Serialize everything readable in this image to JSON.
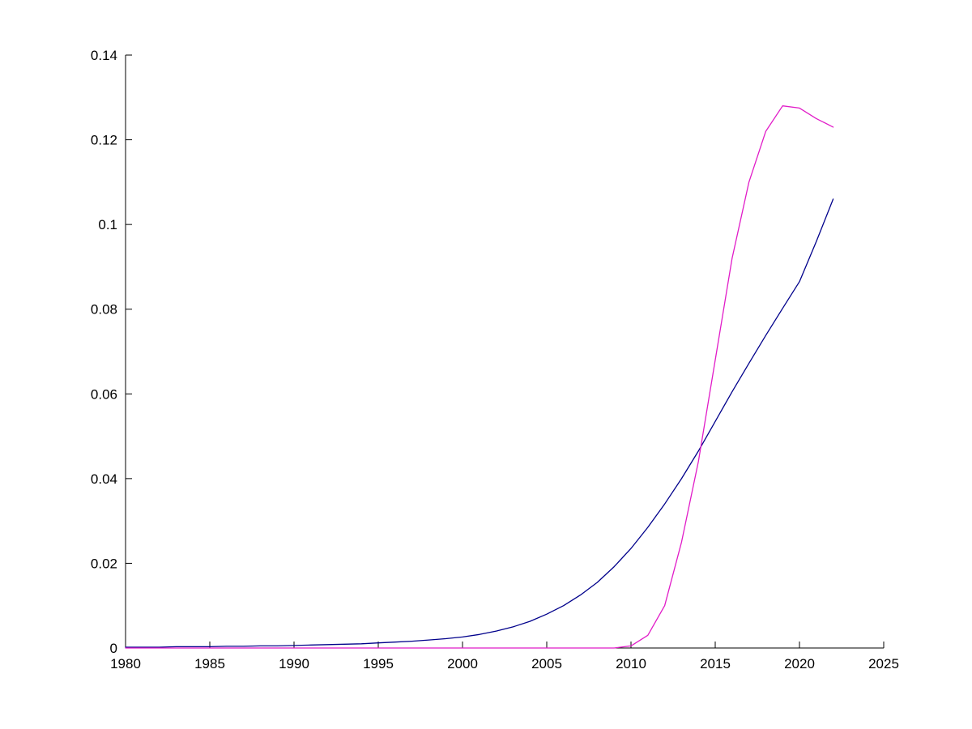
{
  "chart_data": {
    "type": "line",
    "title": "",
    "xlabel": "",
    "ylabel": "",
    "grid": false,
    "legend": "none",
    "axis_color": "#000000",
    "background_color": "#ffffff",
    "xlim": [
      1980,
      2025
    ],
    "ylim": [
      0,
      0.14
    ],
    "x_ticks": [
      1980,
      1985,
      1990,
      1995,
      2000,
      2005,
      2010,
      2015,
      2020,
      2025
    ],
    "x_tick_labels": [
      "1980",
      "1985",
      "1990",
      "1995",
      "2000",
      "2005",
      "2010",
      "2015",
      "2020",
      "2025"
    ],
    "y_ticks": [
      0,
      0.02,
      0.04,
      0.06,
      0.08,
      0.1,
      0.12,
      0.14
    ],
    "y_tick_labels": [
      "0",
      "0.02",
      "0.04",
      "0.06",
      "0.08",
      "0.1",
      "0.12",
      "0.14"
    ],
    "series": [
      {
        "name": "blue-line",
        "color": "#00008b",
        "x": [
          1980,
          1981,
          1982,
          1983,
          1984,
          1985,
          1986,
          1987,
          1988,
          1989,
          1990,
          1991,
          1992,
          1993,
          1994,
          1995,
          1996,
          1997,
          1998,
          1999,
          2000,
          2001,
          2002,
          2003,
          2004,
          2005,
          2006,
          2007,
          2008,
          2009,
          2010,
          2011,
          2012,
          2013,
          2014,
          2015,
          2016,
          2017,
          2018,
          2019,
          2020,
          2021,
          2022
        ],
        "y": [
          0.0002,
          0.0002,
          0.0002,
          0.0003,
          0.0003,
          0.0003,
          0.0004,
          0.0004,
          0.0005,
          0.0005,
          0.0006,
          0.0007,
          0.0008,
          0.0009,
          0.001,
          0.0012,
          0.0014,
          0.0016,
          0.0019,
          0.0022,
          0.0026,
          0.0032,
          0.004,
          0.005,
          0.0063,
          0.008,
          0.01,
          0.0125,
          0.0155,
          0.0192,
          0.0235,
          0.0285,
          0.034,
          0.04,
          0.0465,
          0.0535,
          0.0605,
          0.0672,
          0.0738,
          0.0802,
          0.0865,
          0.096,
          0.106
        ]
      },
      {
        "name": "magenta-line",
        "color": "#e11cc8",
        "x": [
          1980,
          1981,
          1982,
          1983,
          1984,
          1985,
          1986,
          1987,
          1988,
          1989,
          1990,
          1991,
          1992,
          1993,
          1994,
          1995,
          1996,
          1997,
          1998,
          1999,
          2000,
          2001,
          2002,
          2003,
          2004,
          2005,
          2006,
          2007,
          2008,
          2009,
          2010,
          2011,
          2012,
          2013,
          2014,
          2015,
          2016,
          2017,
          2018,
          2019,
          2020,
          2021,
          2022
        ],
        "y": [
          0,
          0,
          0,
          0,
          0,
          0,
          0,
          0,
          0,
          0,
          0,
          0,
          0,
          0,
          0,
          0,
          0,
          0,
          0,
          0,
          0,
          0,
          0,
          0,
          0,
          0,
          0,
          0,
          0,
          0,
          0.0005,
          0.003,
          0.01,
          0.025,
          0.044,
          0.068,
          0.092,
          0.11,
          0.122,
          0.128,
          0.1275,
          0.125,
          0.123
        ]
      }
    ]
  }
}
